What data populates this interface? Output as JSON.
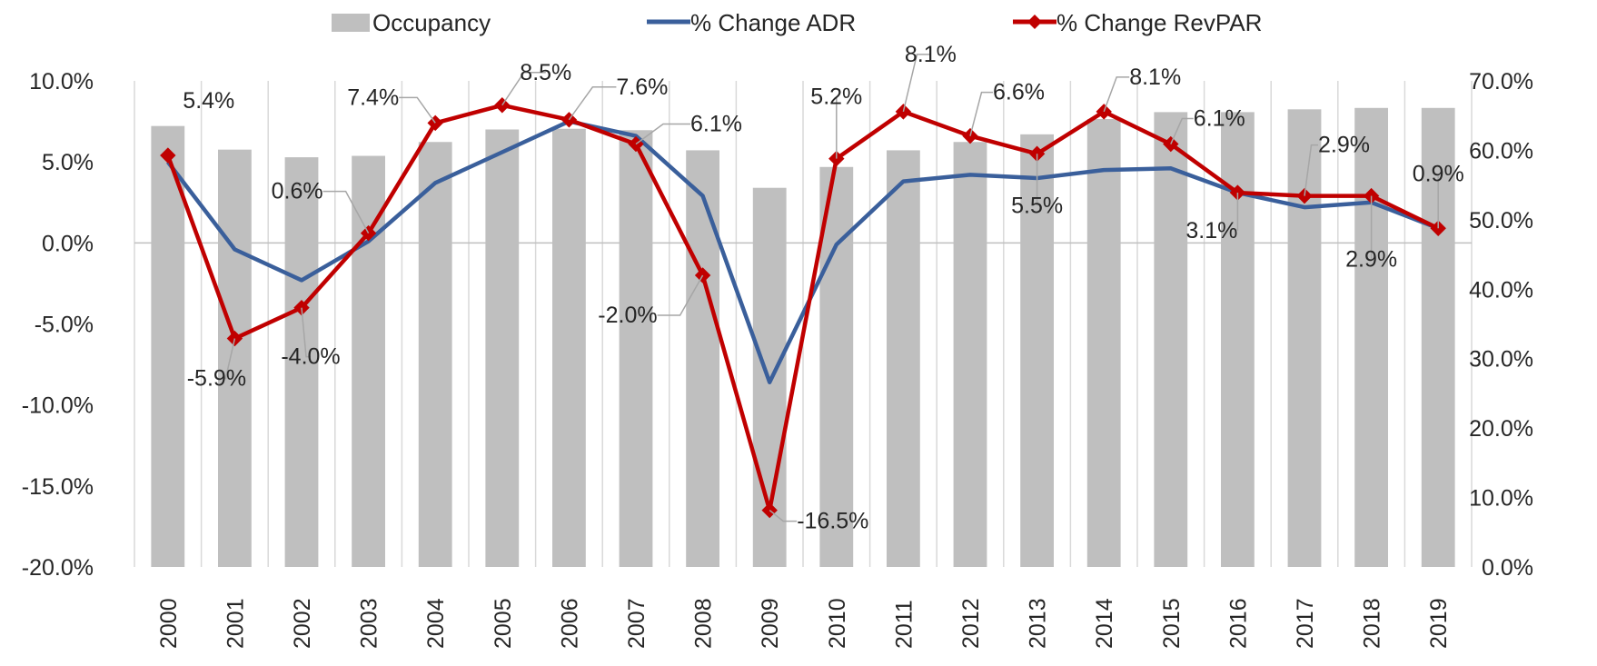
{
  "chart_data": {
    "type": "bar+line",
    "categories": [
      "2000",
      "2001",
      "2002",
      "2003",
      "2004",
      "2005",
      "2006",
      "2007",
      "2008",
      "2009",
      "2010",
      "2011",
      "2012",
      "2013",
      "2014",
      "2015",
      "2016",
      "2017",
      "2018",
      "2019"
    ],
    "series": [
      {
        "name": "Occupancy",
        "type": "bar",
        "axis": "right",
        "color": "#bfbfbf",
        "values": [
          63.5,
          60.1,
          59.0,
          59.2,
          61.2,
          63.0,
          63.1,
          62.9,
          60.0,
          54.6,
          57.6,
          60.0,
          61.2,
          62.3,
          64.5,
          65.5,
          65.5,
          65.9,
          66.1,
          66.1
        ]
      },
      {
        "name": "% Change ADR",
        "type": "line",
        "axis": "left",
        "color": "#3a5f9b",
        "values": [
          5.0,
          -0.4,
          -2.3,
          0.1,
          3.7,
          5.6,
          7.5,
          6.6,
          2.9,
          -8.6,
          -0.1,
          3.8,
          4.2,
          4.0,
          4.5,
          4.6,
          3.1,
          2.2,
          2.5,
          0.9
        ]
      },
      {
        "name": "% Change RevPAR",
        "type": "line",
        "axis": "left",
        "color": "#c00000",
        "values": [
          5.4,
          -5.9,
          -4.0,
          0.6,
          7.4,
          8.5,
          7.6,
          6.1,
          -2.0,
          -16.5,
          5.2,
          8.1,
          6.6,
          5.5,
          8.1,
          6.1,
          3.1,
          2.9,
          2.9,
          0.9
        ],
        "data_labels": [
          "5.4%",
          "-5.9%",
          "-4.0%",
          "0.6%",
          "7.4%",
          "8.5%",
          "7.6%",
          "6.1%",
          "-2.0%",
          "-16.5%",
          "5.2%",
          "8.1%",
          "6.6%",
          "5.5%",
          "8.1%",
          "6.1%",
          "3.1%",
          "2.9%",
          "2.9%",
          "0.9%"
        ]
      }
    ],
    "left_axis": {
      "range": [
        -20,
        10
      ],
      "ticks": [
        10,
        5,
        0,
        -5,
        -10,
        -15,
        -20
      ],
      "tick_labels": [
        "10.0%",
        "5.0%",
        "0.0%",
        "-5.0%",
        "-10.0%",
        "-15.0%",
        "-20.0%"
      ]
    },
    "right_axis": {
      "range": [
        0,
        70
      ],
      "ticks": [
        70,
        60,
        50,
        40,
        30,
        20,
        10,
        0
      ],
      "tick_labels": [
        "70.0%",
        "60.0%",
        "50.0%",
        "40.0%",
        "30.0%",
        "20.0%",
        "10.0%",
        "0.0%"
      ]
    },
    "legend_position": "top",
    "vertical_gridlines": true
  }
}
